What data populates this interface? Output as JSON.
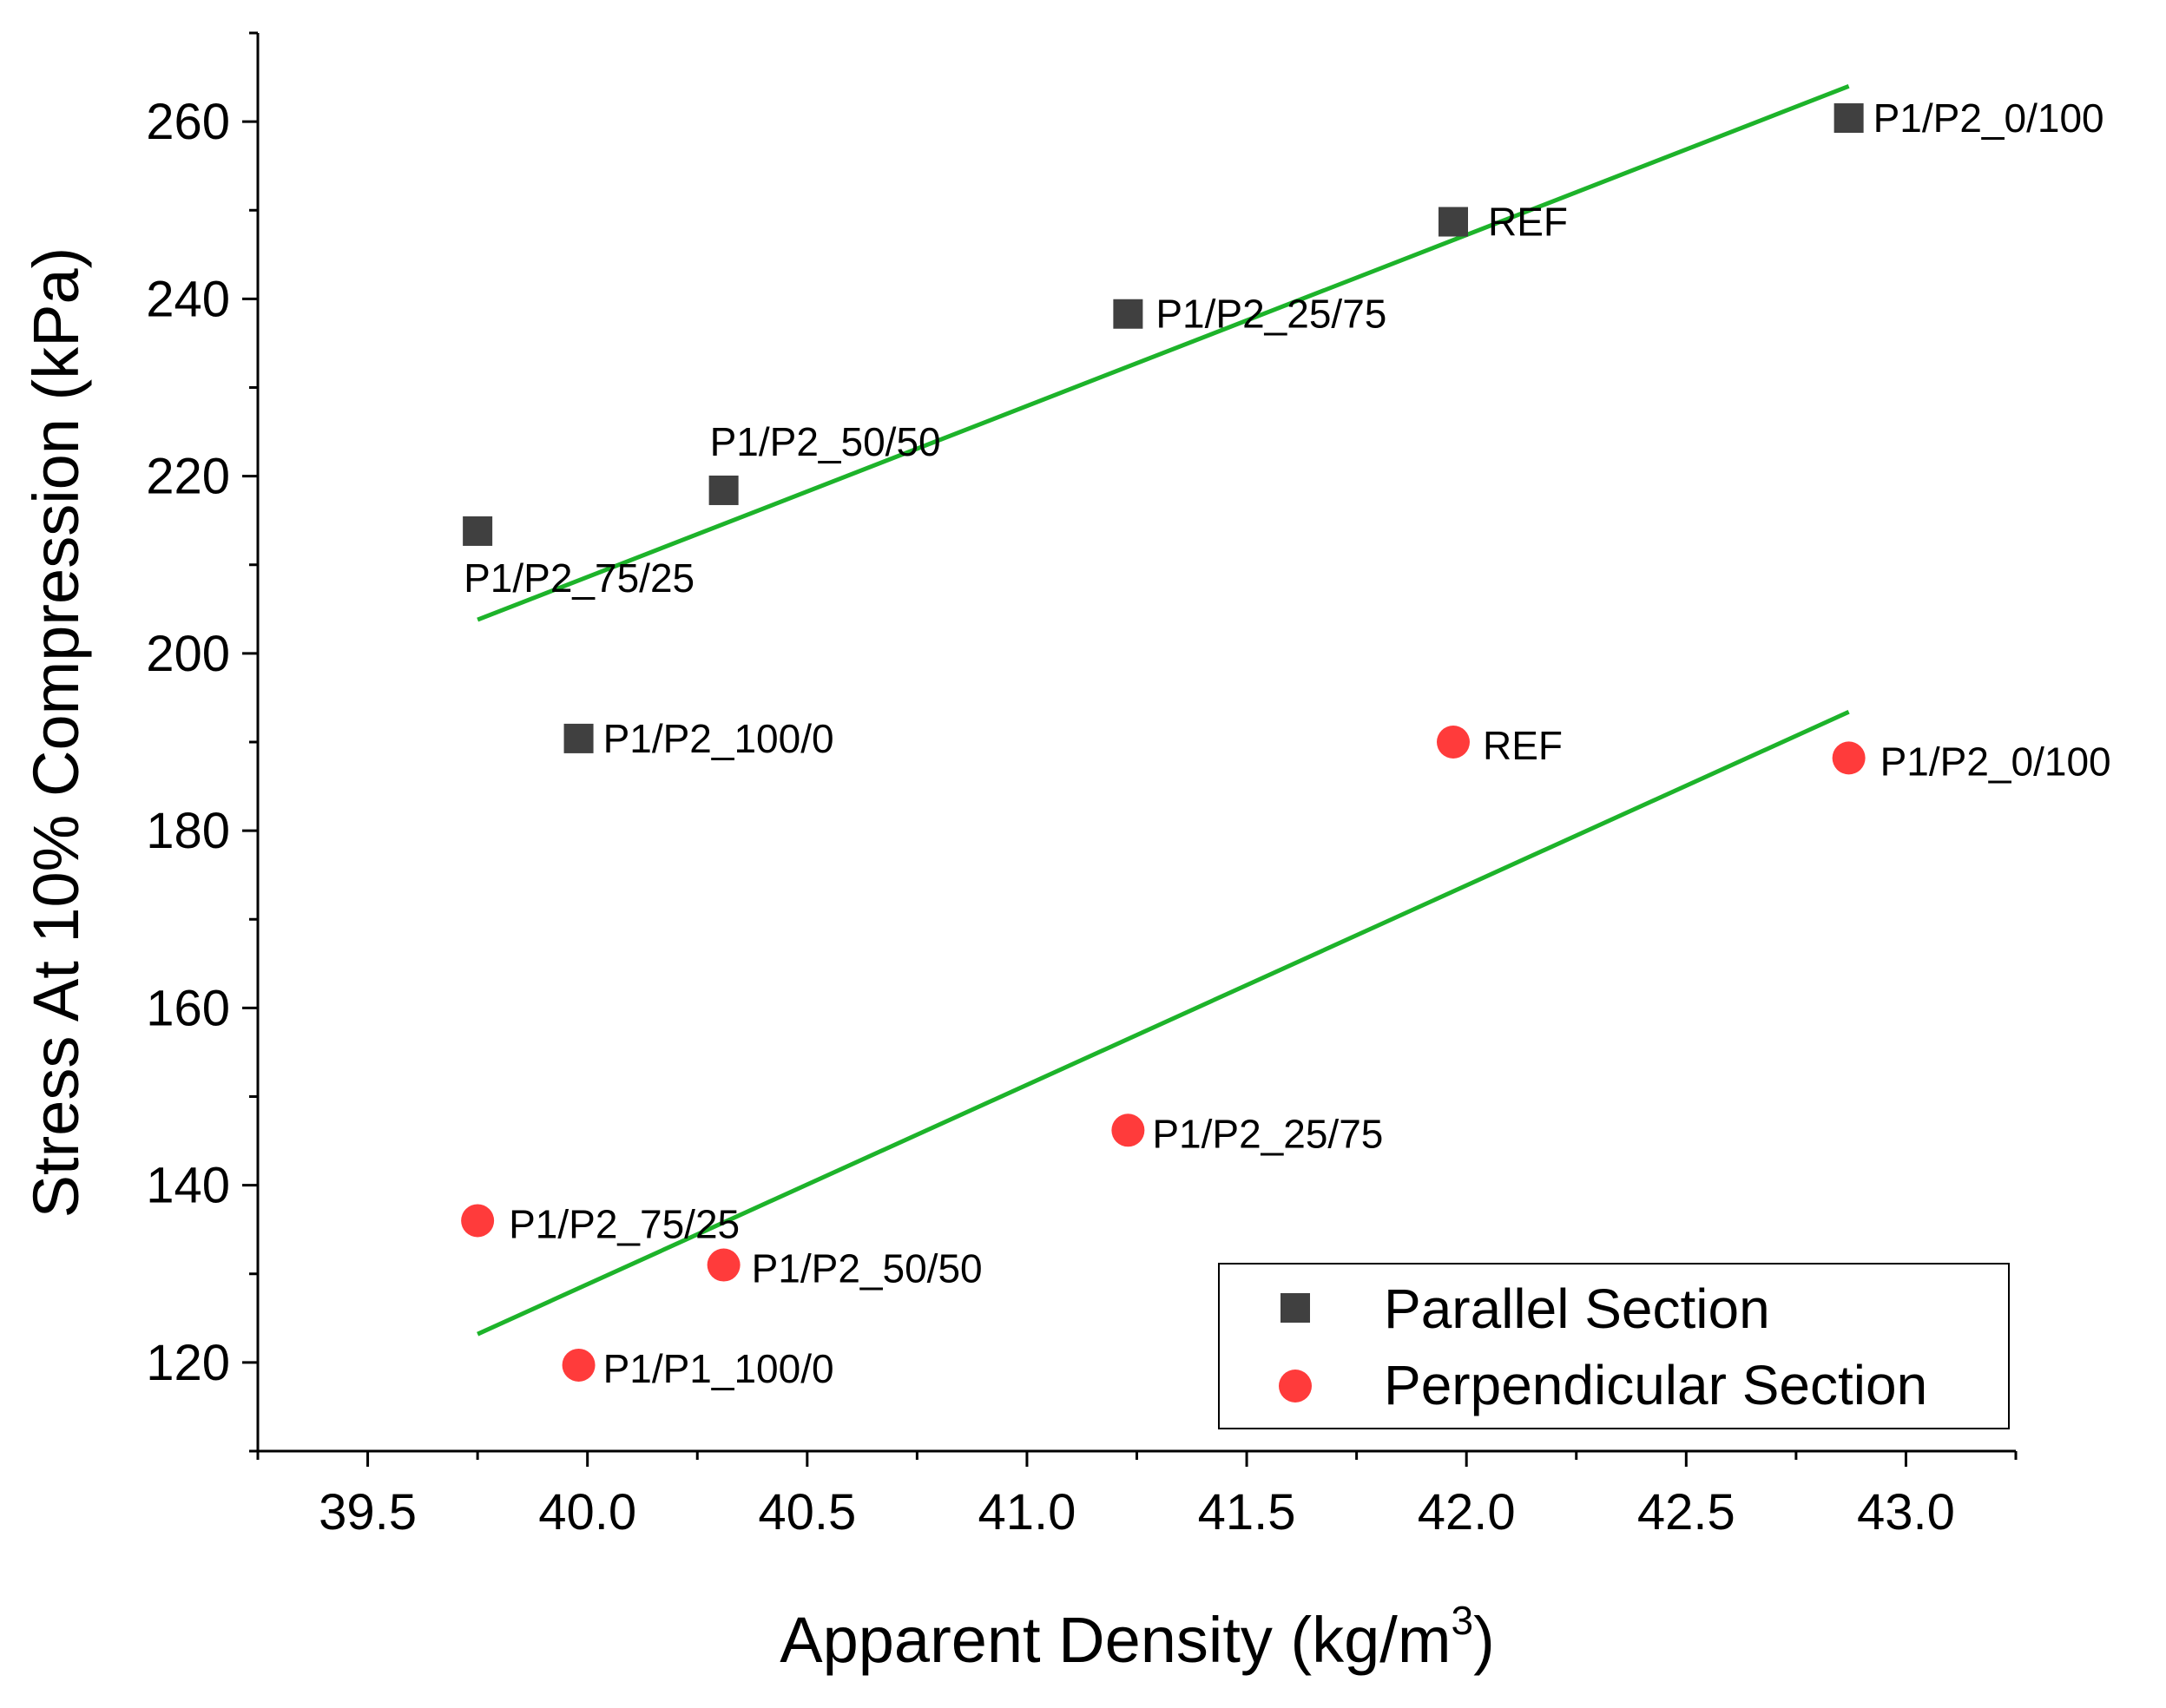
{
  "chart_data": {
    "type": "scatter",
    "title": "",
    "xlabel": "Apparent Density (kg/m",
    "xlabel_sup": "3",
    "xlabel_end": ")",
    "ylabel": "Stress At 10% Compression (kPa)",
    "xlim": [
      39.25,
      43.25
    ],
    "ylim": [
      110,
      270
    ],
    "x_ticks": [
      39.5,
      40.0,
      40.5,
      41.0,
      41.5,
      42.0,
      42.5,
      43.0
    ],
    "x_tick_labels": [
      "39.5",
      "40.0",
      "40.5",
      "41.0",
      "41.5",
      "42.0",
      "42.5",
      "43.0"
    ],
    "y_ticks": [
      120,
      140,
      160,
      180,
      200,
      220,
      240,
      260
    ],
    "y_tick_labels": [
      "120",
      "140",
      "160",
      "180",
      "200",
      "220",
      "240",
      "260"
    ],
    "grid": false,
    "legend_position": "bottom-right",
    "series": [
      {
        "name": "Parallel Section",
        "marker": "square",
        "color": "#404040",
        "points": [
          {
            "x": 39.75,
            "y": 213.8,
            "label": "P1/P2_75/25"
          },
          {
            "x": 40.31,
            "y": 218.4,
            "label": "P1/P2_50/50"
          },
          {
            "x": 39.98,
            "y": 190.4,
            "label": "P1/P2_100/0"
          },
          {
            "x": 41.23,
            "y": 238.3,
            "label": "P1/P2_25/75"
          },
          {
            "x": 41.97,
            "y": 248.7,
            "label": "REF"
          },
          {
            "x": 42.87,
            "y": 260.4,
            "label": "P1/P2_0/100"
          }
        ],
        "fit": {
          "x": [
            39.75,
            42.87
          ],
          "y": [
            203.8,
            264.0
          ],
          "color": "#1db32a"
        }
      },
      {
        "name": "Perpendicular Section",
        "marker": "circle",
        "color": "#ff3b3b",
        "points": [
          {
            "x": 39.75,
            "y": 136.0,
            "label": "P1/P2_75/25"
          },
          {
            "x": 40.31,
            "y": 131.0,
            "label": "P1/P2_50/50"
          },
          {
            "x": 39.98,
            "y": 119.7,
            "label": "P1/P1_100/0"
          },
          {
            "x": 41.23,
            "y": 146.2,
            "label": "P1/P2_25/75"
          },
          {
            "x": 41.97,
            "y": 190.0,
            "label": "REF"
          },
          {
            "x": 42.87,
            "y": 188.2,
            "label": "P1/P2_0/100"
          }
        ],
        "fit": {
          "x": [
            39.75,
            42.87
          ],
          "y": [
            123.2,
            193.4
          ],
          "color": "#1db32a"
        }
      }
    ]
  }
}
